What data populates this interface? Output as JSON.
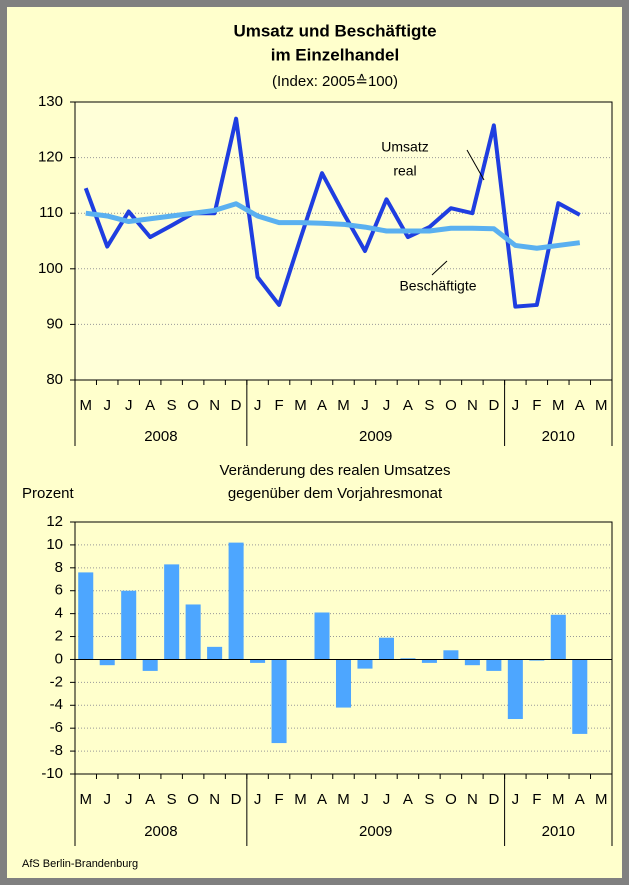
{
  "source": "AfS Berlin-Brandenburg",
  "chart_data": [
    {
      "type": "line",
      "title": [
        "Umsatz und Beschäftigte",
        "im Einzelhandel"
      ],
      "subtitle": "(Index: 2005≙100)",
      "category_groups": [
        {
          "label": "2008",
          "categories": [
            "M",
            "J",
            "J",
            "A",
            "S",
            "O",
            "N",
            "D"
          ]
        },
        {
          "label": "2009",
          "categories": [
            "J",
            "F",
            "M",
            "A",
            "M",
            "J",
            "J",
            "A",
            "S",
            "O",
            "N",
            "D"
          ]
        },
        {
          "label": "2010",
          "categories": [
            "J",
            "F",
            "M",
            "A",
            "M"
          ]
        }
      ],
      "series": [
        {
          "name": "Umsatz real",
          "color": "#1f3ee0",
          "values": [
            114.5,
            104,
            110.3,
            105.7,
            107.8,
            110,
            110,
            127,
            98.5,
            93.5,
            105.5,
            117.2,
            110,
            103.2,
            112.5,
            105.7,
            107.5,
            110.9,
            110,
            125.8,
            93.2,
            93.5,
            111.8,
            109.7,
            null
          ]
        },
        {
          "name": "Beschäftigte",
          "color": "#5ab0f0",
          "values": [
            110,
            109.5,
            108.5,
            109,
            109.5,
            110,
            110.5,
            111.7,
            109.5,
            108.3,
            108.3,
            108.2,
            108,
            107.5,
            106.8,
            106.8,
            106.8,
            107.3,
            107.3,
            107.2,
            104.2,
            103.7,
            104.2,
            104.7,
            null
          ]
        }
      ],
      "annotations": [
        "Umsatz",
        "real",
        "Beschäftigte"
      ],
      "ylim": [
        80,
        130
      ],
      "yticks": [
        80,
        90,
        100,
        110,
        120,
        130
      ],
      "grid": true
    },
    {
      "type": "bar",
      "title": [
        "Veränderung des realen Umsatzes",
        "gegenüber dem Vorjahresmonat"
      ],
      "ylabel": "Prozent",
      "category_groups": [
        {
          "label": "2008",
          "categories": [
            "M",
            "J",
            "J",
            "A",
            "S",
            "O",
            "N",
            "D"
          ]
        },
        {
          "label": "2009",
          "categories": [
            "J",
            "F",
            "M",
            "A",
            "M",
            "J",
            "J",
            "A",
            "S",
            "O",
            "N",
            "D"
          ]
        },
        {
          "label": "2010",
          "categories": [
            "J",
            "F",
            "M",
            "A",
            "M"
          ]
        }
      ],
      "color": "#4da6ff",
      "values": [
        7.6,
        -0.5,
        6.0,
        -1.0,
        8.3,
        4.8,
        1.1,
        10.2,
        -0.3,
        -7.3,
        0,
        4.1,
        -4.2,
        -0.8,
        1.9,
        0.1,
        -0.3,
        0.8,
        -0.5,
        -1.0,
        -5.2,
        -0.1,
        3.9,
        -6.5,
        null
      ],
      "ylim": [
        -10,
        12
      ],
      "yticks": [
        -10,
        -8,
        -6,
        -4,
        -2,
        0,
        2,
        4,
        6,
        8,
        10,
        12
      ],
      "grid": true
    }
  ]
}
